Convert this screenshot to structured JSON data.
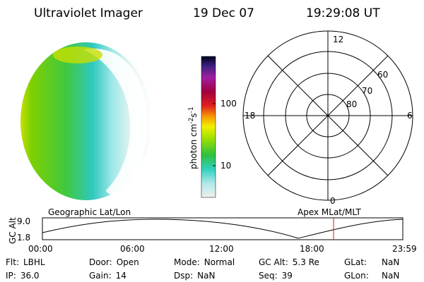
{
  "header": {
    "instrument": "Ultraviolet Imager",
    "date": "19 Dec 07",
    "time": "19:29:08 UT"
  },
  "colorbar": {
    "label": {
      "base": "photon cm",
      "exp1": "-2",
      "unit2": "s",
      "exp2": "-1"
    },
    "ticks": [
      "100",
      "10"
    ]
  },
  "polar": {
    "mlt_labels": {
      "top": "12",
      "left": "18",
      "right": "6",
      "bottom": "0"
    },
    "lat_labels": [
      "60",
      "70",
      "80"
    ]
  },
  "orbit_plot": {
    "left_title": "Geographic Lat/Lon",
    "right_title": "Apex MLat/MLT",
    "y_label": "GC Alt",
    "y_ticks": [
      "9.0",
      "1.8"
    ],
    "x_ticks": [
      "00:00",
      "06:00",
      "12:00",
      "18:00",
      "23:59"
    ]
  },
  "info": {
    "rows": [
      [
        {
          "label": "Flt:",
          "value": "LBHL"
        },
        {
          "label": "Door:",
          "value": "Open"
        },
        {
          "label": "Mode:",
          "value": "Normal"
        },
        {
          "label": "GC Alt:",
          "value": "5.3 Re"
        },
        {
          "label": "GLat:",
          "value": "NaN"
        }
      ],
      [
        {
          "label": "IP:",
          "value": "36.0"
        },
        {
          "label": "Gain:",
          "value": "14"
        },
        {
          "label": "Dsp:",
          "value": "NaN"
        },
        {
          "label": "Seq:",
          "value": "39"
        },
        {
          "label": "GLon:",
          "value": "NaN"
        }
      ]
    ]
  }
}
